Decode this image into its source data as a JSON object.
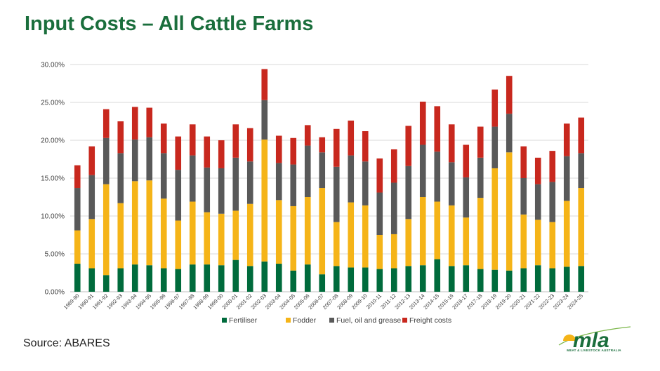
{
  "page": {
    "title": "Input Costs – All Cattle Farms",
    "source": "Source: ABARES",
    "logo": {
      "text": "mla",
      "subtext": "MEAT & LIVESTOCK AUSTRALIA",
      "icon": "mla-logo-icon"
    }
  },
  "colors": {
    "title": "#1a6e3c",
    "Fertiliser": "#006b3c",
    "Fodder": "#f5b418",
    "Fuel, oil and grease": "#595959",
    "Freight costs": "#c8281e",
    "grid": "#d9d9d9"
  },
  "chart_data": {
    "type": "bar",
    "stacked": true,
    "title": "",
    "xlabel": "",
    "ylabel": "",
    "ylim": [
      0,
      0.3
    ],
    "yticks": [
      "0.00%",
      "5.00%",
      "10.00%",
      "15.00%",
      "20.00%",
      "25.00%",
      "30.00%"
    ],
    "grid": true,
    "legend": "bottom",
    "categories": [
      "1989-90",
      "1990-91",
      "1991-92",
      "1992-93",
      "1993-94",
      "1994-95",
      "1995-96",
      "1996-97",
      "1997-98",
      "1998-99",
      "1999-00",
      "2000-01",
      "2001-02",
      "2002-03",
      "2003-04",
      "2004-05",
      "2005-06",
      "2006-07",
      "2007-08",
      "2008-09",
      "2009-10",
      "2010-11",
      "2011-12",
      "2012-13",
      "2013-14",
      "2014-15",
      "2015-16",
      "2016-17",
      "2017-18",
      "2018-19",
      "2019-20",
      "2020-21",
      "2021-22",
      "2022-23",
      "2023-24",
      "2024-25"
    ],
    "series": [
      {
        "name": "Fertiliser",
        "values": [
          0.037,
          0.031,
          0.022,
          0.031,
          0.036,
          0.035,
          0.031,
          0.03,
          0.036,
          0.036,
          0.035,
          0.042,
          0.034,
          0.04,
          0.037,
          0.028,
          0.036,
          0.023,
          0.034,
          0.032,
          0.032,
          0.03,
          0.031,
          0.034,
          0.035,
          0.043,
          0.034,
          0.035,
          0.03,
          0.029,
          0.028,
          0.031,
          0.035,
          0.031,
          0.033,
          0.034
        ]
      },
      {
        "name": "Fodder",
        "values": [
          0.044,
          0.065,
          0.12,
          0.086,
          0.11,
          0.112,
          0.092,
          0.064,
          0.083,
          0.069,
          0.068,
          0.065,
          0.082,
          0.161,
          0.084,
          0.085,
          0.089,
          0.114,
          0.058,
          0.086,
          0.082,
          0.045,
          0.045,
          0.062,
          0.09,
          0.076,
          0.08,
          0.063,
          0.094,
          0.134,
          0.156,
          0.071,
          0.06,
          0.061,
          0.087,
          0.103
        ]
      },
      {
        "name": "Fuel, oil and grease",
        "values": [
          0.056,
          0.058,
          0.061,
          0.066,
          0.055,
          0.057,
          0.06,
          0.067,
          0.061,
          0.059,
          0.06,
          0.07,
          0.056,
          0.052,
          0.049,
          0.055,
          0.068,
          0.047,
          0.073,
          0.062,
          0.058,
          0.056,
          0.068,
          0.07,
          0.069,
          0.066,
          0.057,
          0.053,
          0.053,
          0.055,
          0.051,
          0.048,
          0.047,
          0.053,
          0.059,
          0.046
        ]
      },
      {
        "name": "Freight costs",
        "values": [
          0.03,
          0.038,
          0.038,
          0.042,
          0.043,
          0.039,
          0.039,
          0.044,
          0.041,
          0.041,
          0.037,
          0.044,
          0.044,
          0.041,
          0.036,
          0.035,
          0.027,
          0.02,
          0.05,
          0.046,
          0.04,
          0.045,
          0.044,
          0.053,
          0.057,
          0.06,
          0.05,
          0.043,
          0.041,
          0.049,
          0.05,
          0.042,
          0.035,
          0.041,
          0.043,
          0.047
        ]
      }
    ]
  }
}
